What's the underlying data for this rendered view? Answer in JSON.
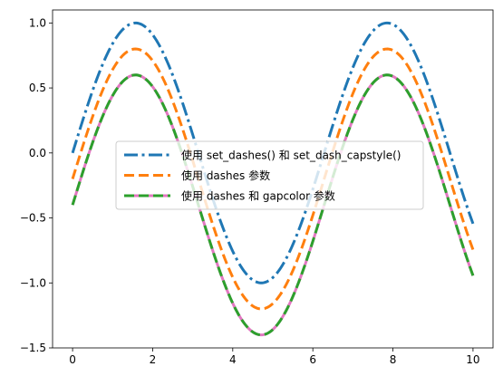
{
  "chart_data": {
    "type": "line",
    "xlim": [
      -0.5,
      10.5
    ],
    "ylim": [
      -1.5,
      1.1
    ],
    "x_ticks": [
      0,
      2,
      4,
      6,
      8,
      10
    ],
    "x_tick_labels": [
      "0",
      "2",
      "4",
      "6",
      "8",
      "10"
    ],
    "y_ticks": [
      -1.5,
      -1.0,
      -0.5,
      0.0,
      0.5,
      1.0
    ],
    "y_tick_labels": [
      "−1.5",
      "−1.0",
      "−0.5",
      "0.0",
      "0.5",
      "1.0"
    ],
    "grid": false,
    "legend_position": "center",
    "x_domain": [
      0,
      10
    ],
    "series": [
      {
        "name": "使用 set_dashes() 和 set_dash_capstyle()",
        "function": "sin(x)",
        "color": "#1f77b4",
        "dash": "long-short"
      },
      {
        "name": "使用 dashes 参数",
        "function": "sin(x) - 0.2",
        "color": "#ff7f0e",
        "dash": "dashed"
      },
      {
        "name": "使用 dashes 和 gapcolor 参数",
        "function": "sin(x) - 0.4",
        "color": "#2ca02c",
        "gap_color": "#e377c2",
        "dash": "dashed-with-gapcolor"
      }
    ]
  }
}
